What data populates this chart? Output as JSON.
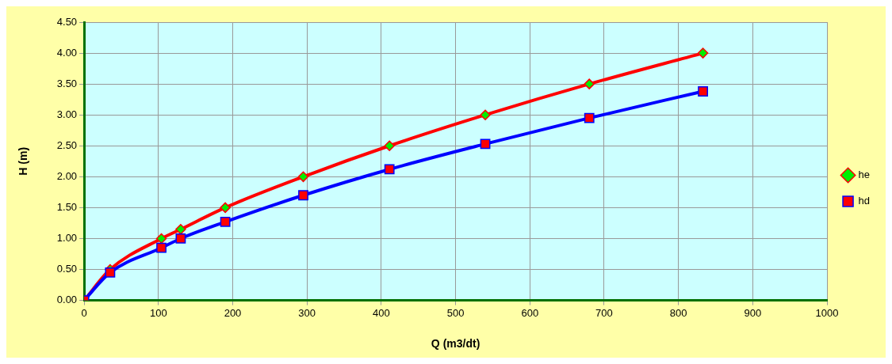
{
  "chart_data": {
    "type": "line",
    "xlabel": "Q (m3/dt)",
    "ylabel": "H (m)",
    "xlim": [
      0,
      1000
    ],
    "xticks": [
      0,
      100,
      200,
      300,
      400,
      500,
      600,
      700,
      800,
      900,
      1000
    ],
    "ylim": [
      0,
      4.5
    ],
    "yticks": [
      {
        "value": 0,
        "label": "0.00"
      },
      {
        "value": 0.5,
        "label": "0.50"
      },
      {
        "value": 1,
        "label": "1.00"
      },
      {
        "value": 1.5,
        "label": "1.50"
      },
      {
        "value": 2,
        "label": "2.00"
      },
      {
        "value": 2.5,
        "label": "2.50"
      },
      {
        "value": 3,
        "label": "3.00"
      },
      {
        "value": 3.5,
        "label": "3.50"
      },
      {
        "value": 4,
        "label": "4.00"
      },
      {
        "value": 4.5,
        "label": "4.50"
      }
    ],
    "grid": true,
    "legend": "right",
    "line_style": "solid",
    "series": [
      {
        "name": "he",
        "color": "#ff0000",
        "colors": [
          "#00ee00",
          "#00ee00",
          "#00ee00",
          "#00ee00",
          "#00ee00",
          "#00ee00",
          "#00ee00",
          "#00ee00",
          "#00ee00",
          "#00ee00"
        ],
        "marker": "diamond",
        "x": [
          0,
          35,
          104,
          130,
          190,
          295,
          411,
          540,
          680,
          833
        ],
        "values": [
          0,
          0.5,
          1.0,
          1.15,
          1.5,
          2.0,
          2.5,
          3.0,
          3.5,
          4.0
        ]
      },
      {
        "name": "hd",
        "color": "#0000ff",
        "colors": [
          "#ff0000",
          "#ff0000",
          "#ff0000",
          "#ff0000",
          "#ff0000",
          "#ff0000",
          "#ff0000",
          "#ff0000",
          "#ff0000",
          "#ff0000"
        ],
        "marker": "square",
        "x": [
          0,
          35,
          104,
          130,
          190,
          295,
          411,
          540,
          680,
          833
        ],
        "values": [
          0,
          0.45,
          0.85,
          1.0,
          1.27,
          1.7,
          2.12,
          2.53,
          2.95,
          3.38
        ]
      }
    ]
  }
}
